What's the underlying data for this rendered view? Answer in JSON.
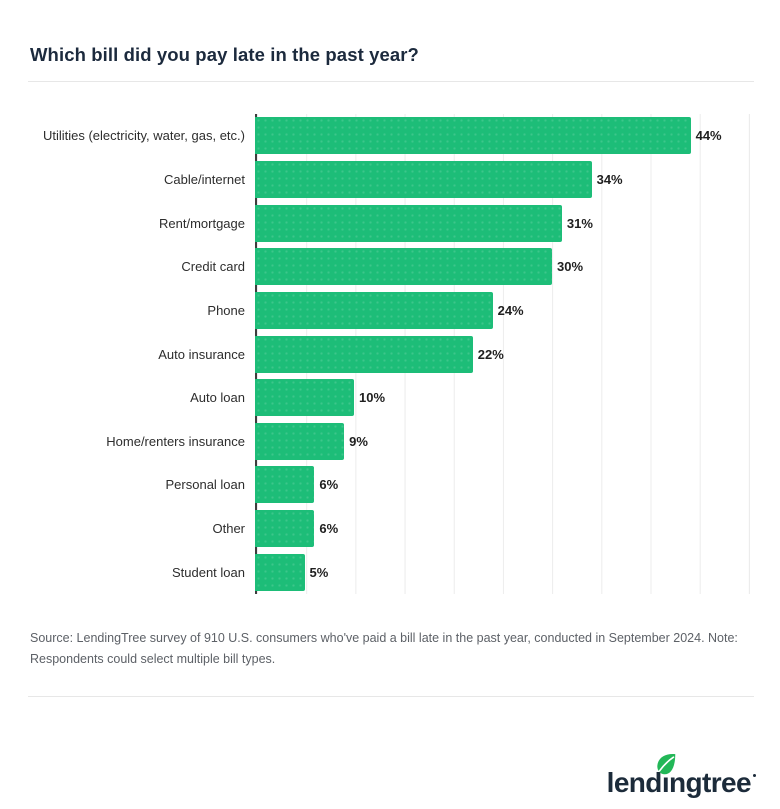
{
  "header": {
    "title": "Which bill did you pay late in the past year?"
  },
  "chart_data": {
    "type": "bar",
    "orientation": "horizontal",
    "title": "Which bill did you pay late in the past year?",
    "categories": [
      "Utilities (electricity, water, gas, etc.)",
      "Cable/internet",
      "Rent/mortgage",
      "Credit card",
      "Phone",
      "Auto insurance",
      "Auto loan",
      "Home/renters insurance",
      "Personal loan",
      "Other",
      "Student loan"
    ],
    "values": [
      44,
      34,
      31,
      30,
      24,
      22,
      10,
      9,
      6,
      6,
      5
    ],
    "value_suffix": "%",
    "xlabel": "",
    "ylabel": "",
    "xlim": [
      0,
      50
    ],
    "gridline_step": 5,
    "grid": true,
    "legend": false,
    "value_labels": "outside-end",
    "bar_color": "#1dbd78"
  },
  "footer": {
    "source_note": "Source: LendingTree survey of 910 U.S. consumers who've paid a bill late in the past year, conducted in September 2024. Note: Respondents could select multiple bill types.",
    "logo": {
      "brand": "lendingtree",
      "seg1": "lend",
      "seg2": "ı",
      "seg3": "ngtree"
    }
  },
  "colors": {
    "bar": "#1dbd78",
    "axis_line": "#3d3d3d",
    "gridline": "#ececec",
    "title_text": "#1c2a3d",
    "category_label": "#2d2d2d",
    "value_label": "#1f1f1f",
    "source_text": "#5d6167",
    "divider": "#e7e7e7",
    "logo_navy": "#1c2b3a",
    "leaf_green": "#22b757"
  }
}
